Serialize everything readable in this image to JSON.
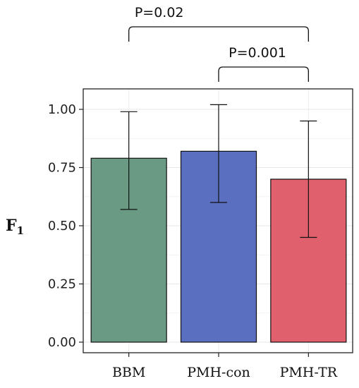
{
  "chart_data": {
    "type": "bar",
    "title": "",
    "xlabel": "",
    "ylabel": "F",
    "ylabel_subscript": "1",
    "ylim": [
      0,
      1.0999
    ],
    "yticks": [
      "0.00",
      "0.25",
      "0.50",
      "0.75",
      "1.00"
    ],
    "ytick_values": [
      0,
      0.25,
      0.5,
      0.75,
      1.0
    ],
    "grid": true,
    "legend": "none",
    "categories": [
      "BBM",
      "PMH-con",
      "PMH-TR"
    ],
    "values": [
      0.79,
      0.82,
      0.7
    ],
    "error_low": [
      0.57,
      0.6,
      0.45
    ],
    "error_high": [
      0.99,
      1.02,
      0.95
    ],
    "colors": [
      "#6a9a84",
      "#5a6fbf",
      "#e0606d"
    ],
    "annotations": [
      {
        "text": "P=0.02",
        "from": 0,
        "to": 2
      },
      {
        "text": "P=0.001",
        "from": 1,
        "to": 2
      }
    ]
  }
}
